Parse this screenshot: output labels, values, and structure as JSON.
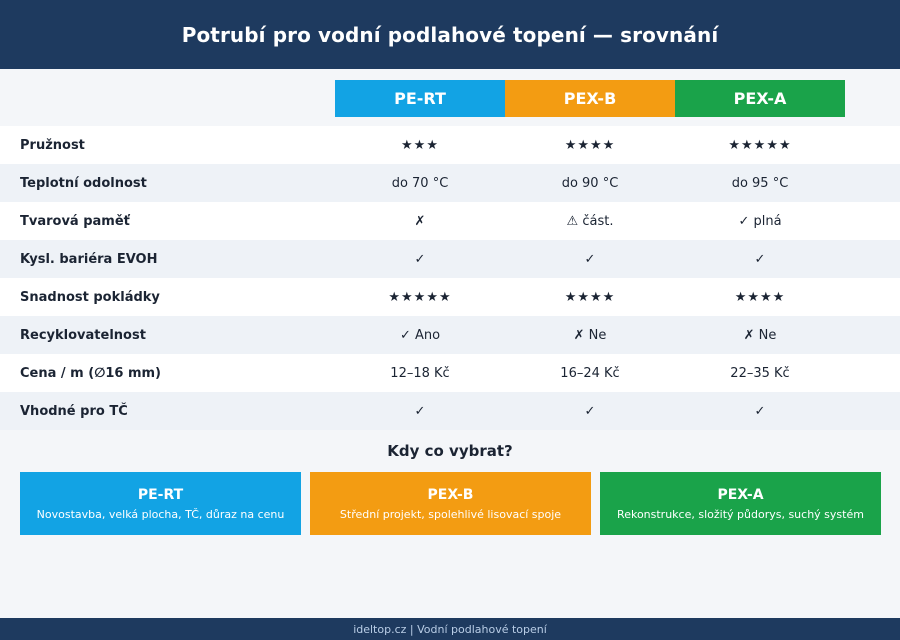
{
  "title": "Potrubí pro vodní podlahové topení — srovnání",
  "colors": {
    "header_bg": "#1e3a5f",
    "pe_rt": "#12a3e4",
    "pex_b": "#f39c12",
    "pex_a": "#1aa34a",
    "yes": "#18a04a",
    "no": "#d0342c",
    "partial": "#e8a317"
  },
  "columns": [
    "PE-RT",
    "PEX-B",
    "PEX-A"
  ],
  "rows": [
    {
      "label": "Pružnost",
      "values": [
        "★★★",
        "★★★★",
        "★★★★★"
      ]
    },
    {
      "label": "Teplotní odolnost",
      "values": [
        "do 70 °C",
        "do 90 °C",
        "do 95 °C"
      ]
    },
    {
      "label": "Tvarová paměť",
      "values": [
        "✗",
        "⚠ část.",
        "✓ plná"
      ],
      "icons": [
        "cross-icon",
        "warning-icon",
        "check-icon"
      ]
    },
    {
      "label": "Kysl. bariéra EVOH",
      "values": [
        "✓",
        "✓",
        "✓"
      ],
      "icons": [
        "check-icon",
        "check-icon",
        "check-icon"
      ]
    },
    {
      "label": "Snadnost pokládky",
      "values": [
        "★★★★★",
        "★★★★",
        "★★★★"
      ]
    },
    {
      "label": "Recyklovatelnost",
      "values": [
        "✓ Ano",
        "✗ Ne",
        "✗ Ne"
      ],
      "icons": [
        "check-icon",
        "cross-icon",
        "cross-icon"
      ]
    },
    {
      "label": "Cena / m (∅16 mm)",
      "values": [
        "12–18 Kč",
        "16–24 Kč",
        "22–35 Kč"
      ]
    },
    {
      "label": "Vhodné pro TČ",
      "values": [
        "✓",
        "✓",
        "✓"
      ],
      "icons": [
        "check-icon",
        "check-icon",
        "check-icon"
      ]
    }
  ],
  "recommend": {
    "title": "Kdy co vybrat?",
    "cards": [
      {
        "title": "PE-RT",
        "desc": "Novostavba, velká plocha, TČ, důraz na cenu"
      },
      {
        "title": "PEX-B",
        "desc": "Střední projekt, spolehlivé lisovací spoje"
      },
      {
        "title": "PEX-A",
        "desc": "Rekonstrukce, složitý půdorys, suchý systém"
      }
    ]
  },
  "footer": "ideltop.cz | Vodní podlahové topení"
}
